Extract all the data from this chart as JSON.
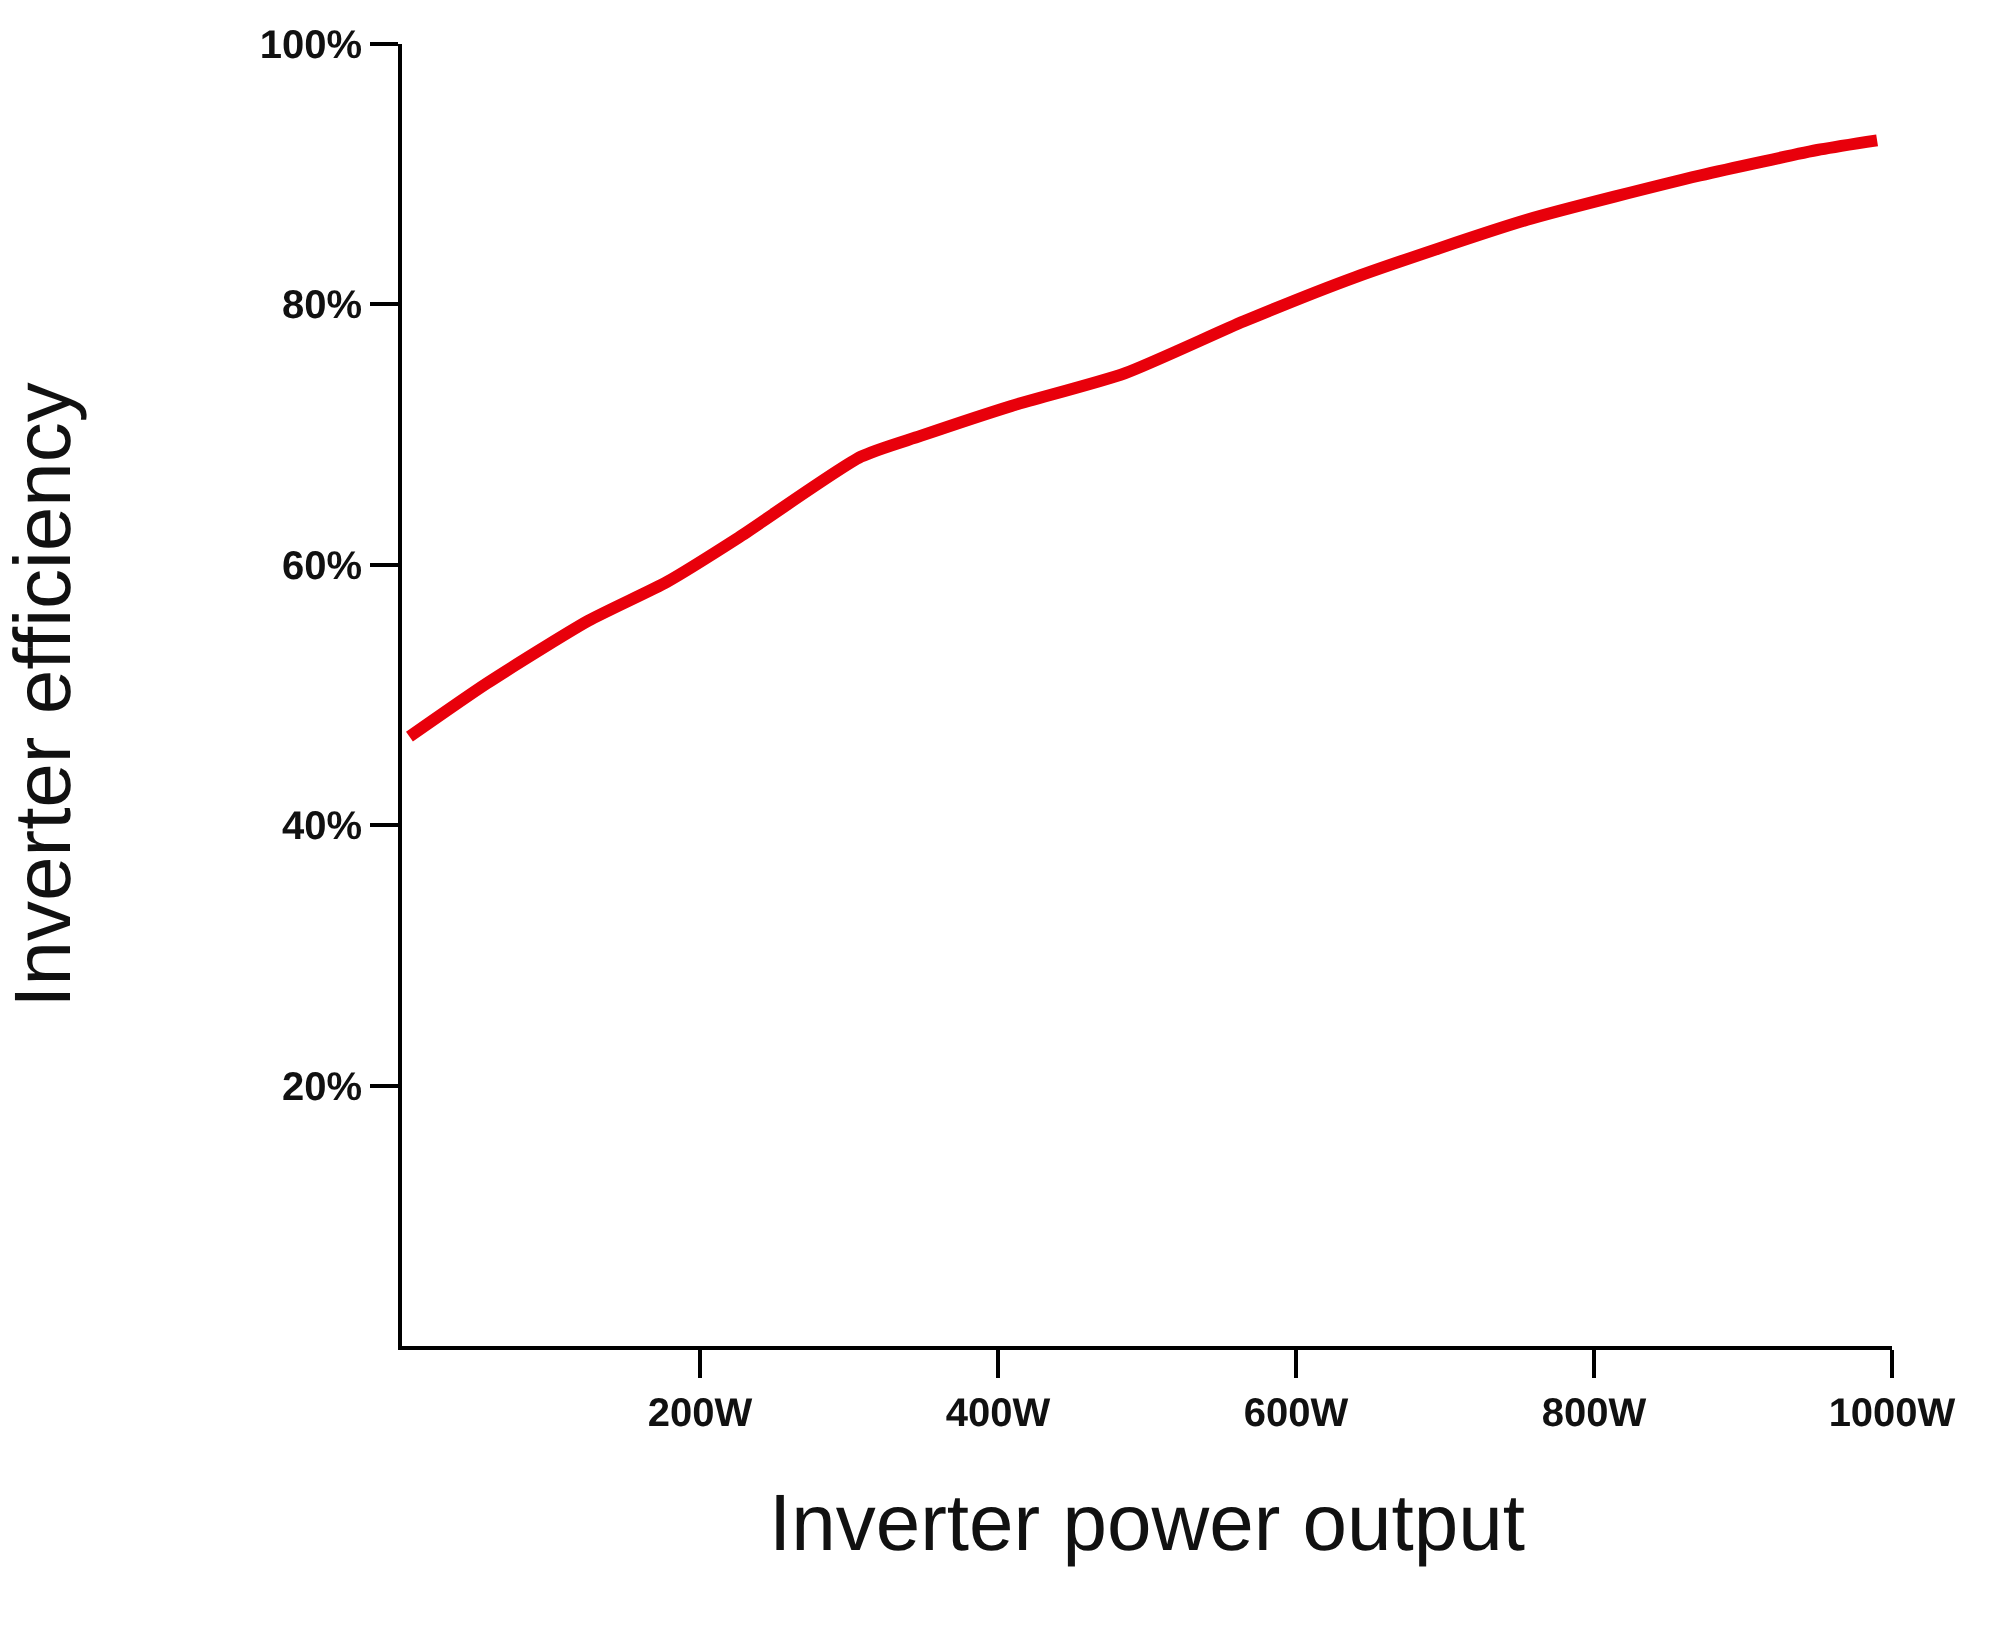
{
  "chart_data": {
    "type": "line",
    "xlabel": "Inverter power output",
    "ylabel": "Inverter efficiency",
    "x": [
      5,
      57,
      125,
      178,
      226,
      308,
      348,
      409,
      485,
      565,
      640,
      755,
      871,
      952,
      990
    ],
    "series": [
      {
        "color": "#e8000b",
        "values": [
          46.8,
          50.9,
          55.7,
          58.7,
          62.1,
          68.3,
          69.9,
          72.2,
          74.7,
          78.7,
          82.1,
          86.5,
          89.9,
          91.9,
          92.6
        ]
      }
    ],
    "xlim": [
      0,
      1000
    ],
    "ylim": [
      0,
      100
    ],
    "xticks": [
      {
        "value": 200,
        "label": "200W"
      },
      {
        "value": 400,
        "label": "400W"
      },
      {
        "value": 600,
        "label": "600W"
      },
      {
        "value": 800,
        "label": "800W"
      },
      {
        "value": 1000,
        "label": "1000W"
      }
    ],
    "yticks": [
      {
        "value": 20,
        "label": "20%"
      },
      {
        "value": 40,
        "label": "40%"
      },
      {
        "value": 60,
        "label": "60%"
      },
      {
        "value": 80,
        "label": "80%"
      },
      {
        "value": 100,
        "label": "100%"
      }
    ],
    "marker": "none",
    "line_style": "solid"
  }
}
